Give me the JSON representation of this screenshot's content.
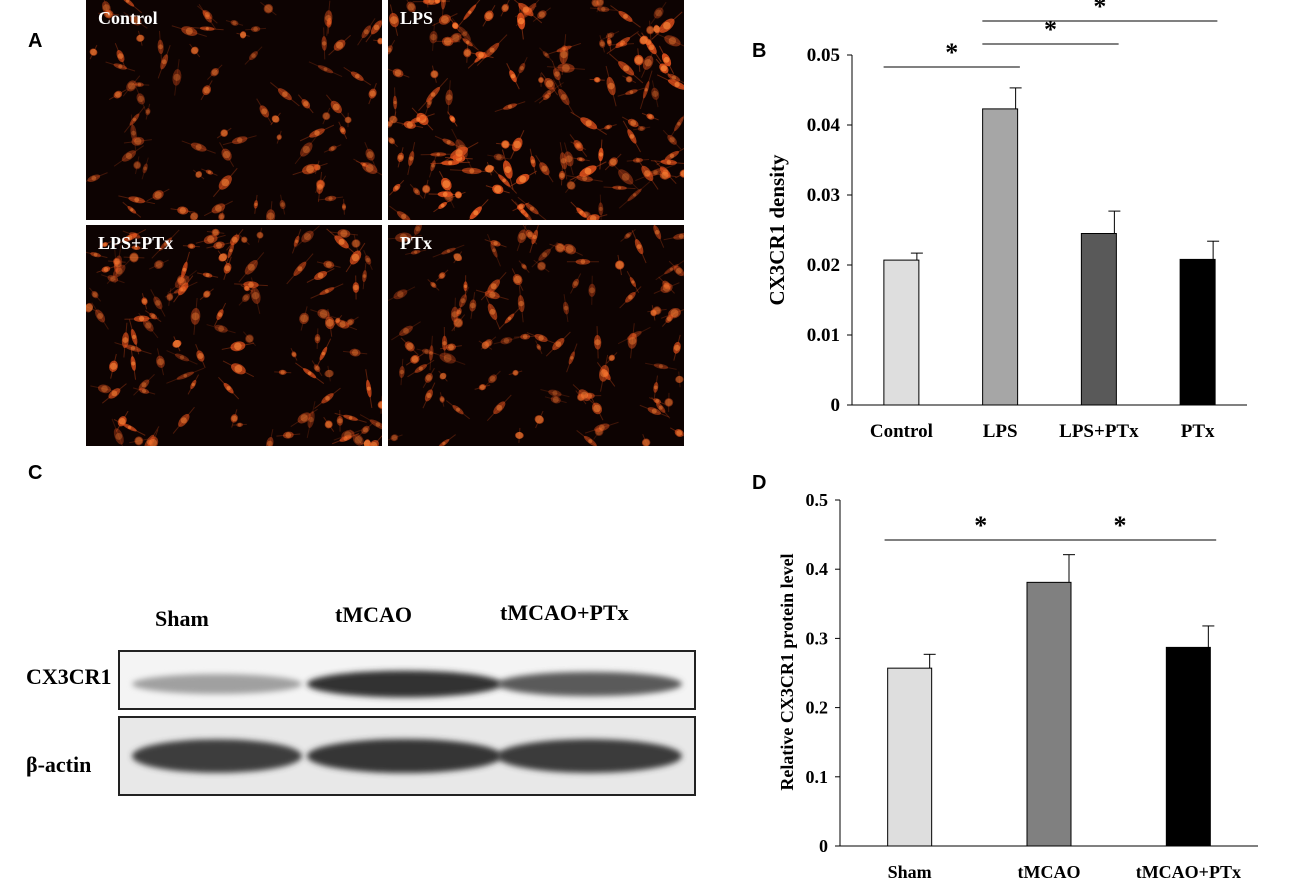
{
  "panel_letters": {
    "a": "A",
    "b": "B",
    "c": "C",
    "d": "D"
  },
  "micrographs": [
    {
      "label": "Control",
      "density": 0.55,
      "intensity": 0.55
    },
    {
      "label": "LPS",
      "density": 1.0,
      "intensity": 1.0
    },
    {
      "label": "LPS+PTx",
      "density": 0.8,
      "intensity": 0.75
    },
    {
      "label": "PTx",
      "density": 0.7,
      "intensity": 0.6
    }
  ],
  "colors": {
    "fluorescence": "#e0501c",
    "micro_bg": "#0d0302"
  },
  "western_blot": {
    "lanes": [
      "Sham",
      "tMCAO",
      "tMCAO+PTx"
    ],
    "rows": [
      {
        "label": "CX3CR1",
        "intensity": [
          0.35,
          0.9,
          0.7
        ]
      },
      {
        "label": "β-actin",
        "intensity": [
          0.85,
          0.88,
          0.86
        ]
      }
    ]
  },
  "chart_data": [
    {
      "type": "bar",
      "panel": "B",
      "categories": [
        "Control",
        "LPS",
        "LPS+PTx",
        "PTx"
      ],
      "values": [
        0.0207,
        0.0423,
        0.0245,
        0.0208
      ],
      "errors": [
        0.001,
        0.003,
        0.0032,
        0.0026
      ],
      "colors": [
        "#dedede",
        "#a6a6a6",
        "#595959",
        "#000000"
      ],
      "ylabel": "CX3CR1 density",
      "ylim": [
        0,
        0.05
      ],
      "yticks": [
        0,
        0.01,
        0.02,
        0.03,
        0.04,
        0.05
      ],
      "ytick_labels": [
        "0",
        "0.01",
        "0.02",
        "0.03",
        "0.04",
        "0.05"
      ],
      "significance": [
        {
          "from": 0,
          "to": 1,
          "label": "*",
          "level": 1
        },
        {
          "from": 1,
          "to": 2,
          "label": "*",
          "level": 2
        },
        {
          "from": 1,
          "to": 3,
          "label": "*",
          "level": 3
        }
      ]
    },
    {
      "type": "bar",
      "panel": "D",
      "categories": [
        "Sham",
        "tMCAO",
        "tMCAO+PTx"
      ],
      "values": [
        0.257,
        0.381,
        0.287
      ],
      "errors": [
        0.02,
        0.04,
        0.031
      ],
      "colors": [
        "#dedede",
        "#808080",
        "#000000"
      ],
      "ylabel": "Relative CX3CR1 protein level",
      "ylim": [
        0,
        0.5
      ],
      "yticks": [
        0,
        0.1,
        0.2,
        0.3,
        0.4,
        0.5
      ],
      "ytick_labels": [
        "0",
        "0.1",
        "0.2",
        "0.3",
        "0.4",
        "0.5"
      ],
      "significance": [
        {
          "from": 0,
          "to": 1,
          "label": "*",
          "level": 1
        },
        {
          "from": 1,
          "to": 2,
          "label": "*",
          "level": 1
        }
      ]
    }
  ]
}
